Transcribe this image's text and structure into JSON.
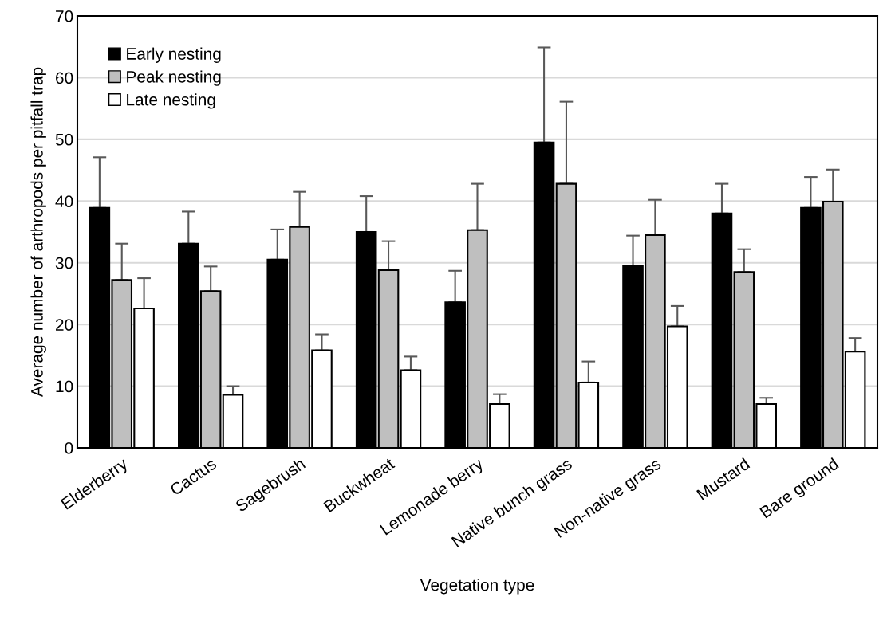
{
  "chart_data": {
    "type": "bar",
    "xlabel": "Vegetation type",
    "ylabel": "Average number of arthropods per pitfall trap",
    "categories": [
      "Elderberry",
      "Cactus",
      "Sagebrush",
      "Buckwheat",
      "Lemonade berry",
      "Native bunch grass",
      "Non-native grass",
      "Mustard",
      "Bare ground"
    ],
    "series": [
      {
        "name": "Early nesting",
        "color": "#000000",
        "values": [
          38.9,
          33.1,
          30.5,
          35.0,
          23.6,
          49.5,
          29.5,
          38.0,
          38.9
        ],
        "errors": [
          [
            38.9,
            47.1
          ],
          [
            33.1,
            38.3
          ],
          [
            30.5,
            35.4
          ],
          [
            35.0,
            40.8
          ],
          [
            23.6,
            28.7
          ],
          [
            49.5,
            64.9
          ],
          [
            29.5,
            34.4
          ],
          [
            38.0,
            42.8
          ],
          [
            38.9,
            43.9
          ]
        ]
      },
      {
        "name": "Peak nesting",
        "color": "#bfbfbf",
        "values": [
          27.2,
          25.4,
          35.8,
          28.8,
          35.3,
          42.8,
          34.5,
          28.5,
          39.9
        ],
        "errors": [
          [
            27.2,
            33.1
          ],
          [
            25.4,
            29.4
          ],
          [
            35.8,
            41.5
          ],
          [
            28.8,
            33.5
          ],
          [
            35.3,
            42.8
          ],
          [
            42.8,
            56.1
          ],
          [
            34.5,
            40.2
          ],
          [
            28.5,
            32.2
          ],
          [
            39.9,
            45.1
          ]
        ]
      },
      {
        "name": "Late nesting",
        "color": "#ffffff",
        "values": [
          22.6,
          8.6,
          15.8,
          12.6,
          7.1,
          10.6,
          19.7,
          7.1,
          15.6
        ],
        "errors": [
          [
            22.6,
            27.5
          ],
          [
            8.6,
            10.0
          ],
          [
            15.8,
            18.4
          ],
          [
            12.6,
            14.8
          ],
          [
            7.1,
            8.7
          ],
          [
            10.6,
            14.0
          ],
          [
            19.7,
            23.0
          ],
          [
            7.1,
            8.1
          ],
          [
            15.6,
            17.8
          ]
        ]
      }
    ],
    "ylim": [
      0,
      70
    ],
    "yticks": [
      0,
      10,
      20,
      30,
      40,
      50,
      60,
      70
    ],
    "grid": "y",
    "legend": "top left"
  }
}
